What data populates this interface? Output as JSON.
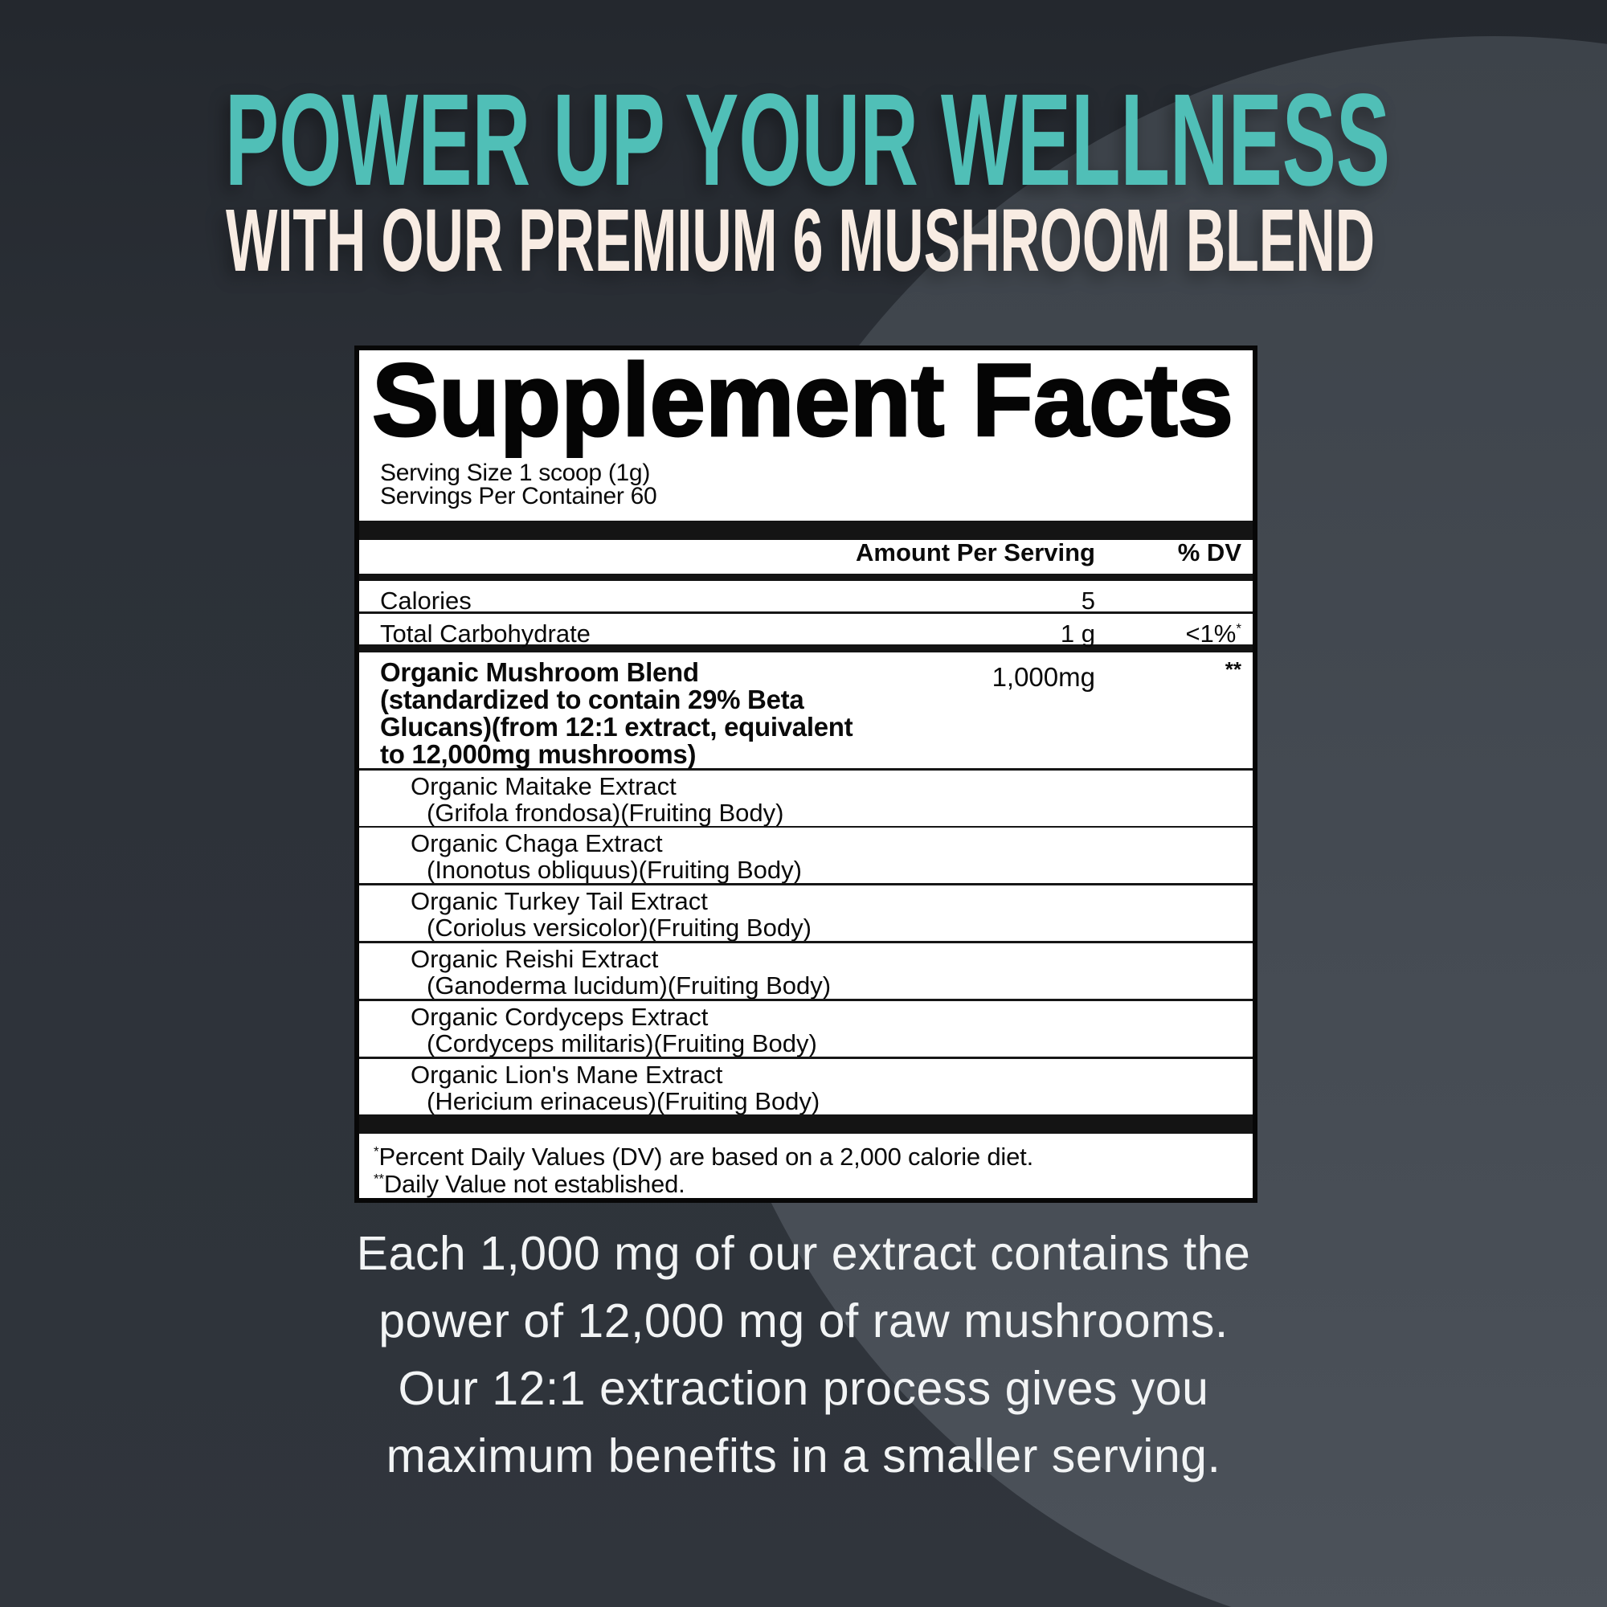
{
  "header": {
    "title": "POWER UP YOUR WELLNESS",
    "subtitle": "WITH OUR PREMIUM 6 MUSHROOM BLEND",
    "title_color": "#50bfb7",
    "subtitle_color": "#f8ece3"
  },
  "panel": {
    "title": "Supplement Facts",
    "serving_size": "Serving Size 1 scoop (1g)",
    "servings_per_container": "Servings Per Container 60",
    "columns": {
      "amount": "Amount Per Serving",
      "dv": "% DV"
    },
    "calories": {
      "name": "Calories",
      "amount": "5"
    },
    "carbohydrate": {
      "name": "Total Carbohydrate",
      "amount": "1 g",
      "dv": "<1%",
      "dv_sup": "*"
    },
    "blend": {
      "lines": [
        "Organic Mushroom Blend",
        "(standardized to contain 29% Beta",
        "Glucans)(from 12:1 extract, equivalent",
        "to 12,000mg mushrooms)"
      ],
      "amount": "1,000mg",
      "dv_sup": "**"
    },
    "ingredients": [
      {
        "name": "Organic Maitake Extract",
        "latin": "(Grifola frondosa)(Fruiting Body)"
      },
      {
        "name": "Organic Chaga Extract",
        "latin": "(Inonotus obliquus)(Fruiting Body)"
      },
      {
        "name": "Organic Turkey Tail Extract",
        "latin": "(Coriolus versicolor)(Fruiting Body)"
      },
      {
        "name": "Organic Reishi Extract",
        "latin": "(Ganoderma lucidum)(Fruiting Body)"
      },
      {
        "name": "Organic Cordyceps Extract",
        "latin": "(Cordyceps militaris)(Fruiting Body)"
      },
      {
        "name": "Organic Lion's Mane Extract",
        "latin": "(Hericium erinaceus)(Fruiting Body)"
      }
    ],
    "footnotes": [
      {
        "sup": "*",
        "text": "Percent Daily Values (DV) are based on a 2,000 calorie diet."
      },
      {
        "sup": "**",
        "text": "Daily Value not established."
      }
    ]
  },
  "description": {
    "lines": [
      "Each 1,000 mg of our extract contains the",
      "power of 12,000 mg of raw mushrooms.",
      "Our 12:1 extraction process gives you",
      "maximum benefits in a smaller serving."
    ]
  }
}
